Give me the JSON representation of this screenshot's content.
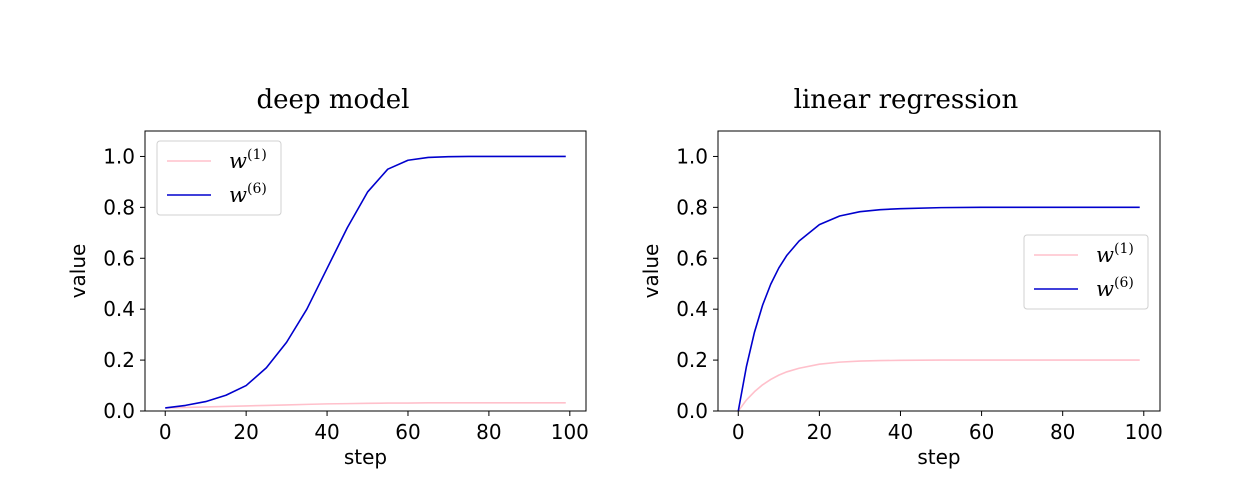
{
  "chart_data": [
    {
      "type": "line",
      "title": "deep model",
      "xlabel": "step",
      "ylabel": "value",
      "xlim": [
        -5,
        104
      ],
      "ylim": [
        0,
        1.1
      ],
      "xticks": [
        0,
        20,
        40,
        60,
        80,
        100
      ],
      "yticks": [
        0.0,
        0.2,
        0.4,
        0.6,
        0.8,
        1.0
      ],
      "xtick_labels": [
        "0",
        "20",
        "40",
        "60",
        "80",
        "100"
      ],
      "ytick_labels": [
        "0.0",
        "0.2",
        "0.4",
        "0.6",
        "0.8",
        "1.0"
      ],
      "legend": "upper-left",
      "x": [
        0,
        5,
        10,
        15,
        20,
        25,
        30,
        35,
        40,
        45,
        50,
        55,
        60,
        65,
        70,
        75,
        80,
        85,
        90,
        95,
        99
      ],
      "series": [
        {
          "name": "w",
          "sup": "(1)",
          "color": "#ffc0cb",
          "values": [
            0.012,
            0.014,
            0.016,
            0.018,
            0.02,
            0.022,
            0.024,
            0.026,
            0.028,
            0.029,
            0.03,
            0.031,
            0.031,
            0.032,
            0.032,
            0.032,
            0.032,
            0.032,
            0.032,
            0.032,
            0.032
          ]
        },
        {
          "name": "w",
          "sup": "(6)",
          "color": "#0000cd",
          "values": [
            0.012,
            0.022,
            0.037,
            0.062,
            0.1,
            0.17,
            0.27,
            0.4,
            0.56,
            0.72,
            0.86,
            0.95,
            0.985,
            0.996,
            0.999,
            1.0,
            1.0,
            1.0,
            1.0,
            1.0,
            1.0
          ]
        }
      ]
    },
    {
      "type": "line",
      "title": "linear regression",
      "xlabel": "step",
      "ylabel": "value",
      "xlim": [
        -5,
        104
      ],
      "ylim": [
        0,
        1.1
      ],
      "xticks": [
        0,
        20,
        40,
        60,
        80,
        100
      ],
      "yticks": [
        0.0,
        0.2,
        0.4,
        0.6,
        0.8,
        1.0
      ],
      "xtick_labels": [
        "0",
        "20",
        "40",
        "60",
        "80",
        "100"
      ],
      "ytick_labels": [
        "0.0",
        "0.2",
        "0.4",
        "0.6",
        "0.8",
        "1.0"
      ],
      "legend": "center-right",
      "x": [
        0,
        2,
        4,
        6,
        8,
        10,
        12,
        15,
        20,
        25,
        30,
        35,
        40,
        50,
        60,
        70,
        80,
        90,
        99
      ],
      "series": [
        {
          "name": "w",
          "sup": "(1)",
          "color": "#ffc0cb",
          "values": [
            0.0,
            0.043,
            0.076,
            0.103,
            0.124,
            0.141,
            0.154,
            0.168,
            0.184,
            0.192,
            0.196,
            0.198,
            0.199,
            0.2,
            0.2,
            0.2,
            0.2,
            0.2,
            0.2
          ]
        },
        {
          "name": "w",
          "sup": "(6)",
          "color": "#0000cd",
          "values": [
            0.0,
            0.174,
            0.31,
            0.416,
            0.498,
            0.562,
            0.612,
            0.668,
            0.732,
            0.766,
            0.783,
            0.791,
            0.795,
            0.799,
            0.8,
            0.8,
            0.8,
            0.8,
            0.8
          ]
        }
      ]
    }
  ]
}
